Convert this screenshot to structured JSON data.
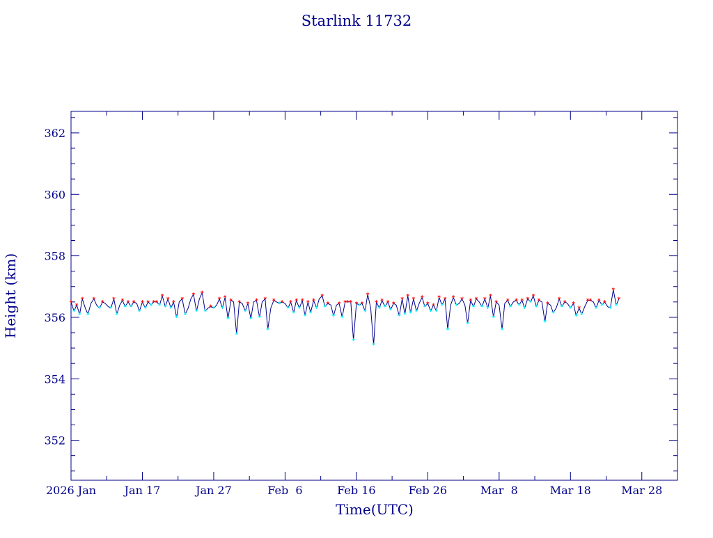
{
  "chart_data": {
    "type": "line",
    "title": "Starlink 11732",
    "xlabel": "Time(UTC)",
    "ylabel": "Height (km)",
    "xlim": [
      "2026-01-07",
      "2026-04-02"
    ],
    "ylim": [
      350.7,
      362.7
    ],
    "y_ticks": [
      352,
      354,
      356,
      358,
      360,
      362
    ],
    "y_minor_step": 0.5,
    "x_ticks": [
      {
        "date": "2026-01-07",
        "label": "2026 Jan"
      },
      {
        "date": "2026-01-17",
        "label": "Jan 17"
      },
      {
        "date": "2026-01-27",
        "label": "Jan 27"
      },
      {
        "date": "2026-02-06",
        "label": "Feb  6"
      },
      {
        "date": "2026-02-16",
        "label": "Feb 16"
      },
      {
        "date": "2026-02-26",
        "label": "Feb 26"
      },
      {
        "date": "2026-03-08",
        "label": "Mar  8"
      },
      {
        "date": "2026-03-18",
        "label": "Mar 18"
      },
      {
        "date": "2026-03-28",
        "label": "Mar 28"
      }
    ],
    "grid": false,
    "legend": "none",
    "series": [
      {
        "line_color": "#00008b",
        "max_marker_color": "#ff0000",
        "min_marker_color": "#00ffff",
        "points": [
          [
            "2026-01-07T00:00",
            356.5
          ],
          [
            "2026-01-07T10:00",
            356.2
          ],
          [
            "2026-01-07T19:00",
            356.4
          ],
          [
            "2026-01-08T05:00",
            356.1
          ],
          [
            "2026-01-08T14:00",
            356.6
          ],
          [
            "2026-01-09T00:00",
            356.3
          ],
          [
            "2026-01-09T09:00",
            356.1
          ],
          [
            "2026-01-09T19:00",
            356.45
          ],
          [
            "2026-01-10T05:00",
            356.6
          ],
          [
            "2026-01-10T14:00",
            356.4
          ],
          [
            "2026-01-11T00:00",
            356.3
          ],
          [
            "2026-01-11T10:00",
            356.5
          ],
          [
            "2026-01-11T19:00",
            356.45
          ],
          [
            "2026-01-12T05:00",
            356.35
          ],
          [
            "2026-01-12T14:00",
            356.3
          ],
          [
            "2026-01-13T00:00",
            356.6
          ],
          [
            "2026-01-13T10:00",
            356.1
          ],
          [
            "2026-01-13T20:00",
            356.4
          ],
          [
            "2026-01-14T05:00",
            356.55
          ],
          [
            "2026-01-14T14:00",
            356.35
          ],
          [
            "2026-01-15T00:00",
            356.5
          ],
          [
            "2026-01-15T10:00",
            356.35
          ],
          [
            "2026-01-15T19:00",
            356.5
          ],
          [
            "2026-01-16T05:00",
            356.45
          ],
          [
            "2026-01-16T14:00",
            356.2
          ],
          [
            "2026-01-17T00:00",
            356.5
          ],
          [
            "2026-01-17T10:00",
            356.3
          ],
          [
            "2026-01-17T19:00",
            356.5
          ],
          [
            "2026-01-18T05:00",
            356.4
          ],
          [
            "2026-01-18T14:00",
            356.5
          ],
          [
            "2026-01-19T00:00",
            356.5
          ],
          [
            "2026-01-19T10:00",
            356.4
          ],
          [
            "2026-01-19T19:00",
            356.7
          ],
          [
            "2026-01-20T05:00",
            356.35
          ],
          [
            "2026-01-20T14:00",
            356.6
          ],
          [
            "2026-01-21T00:00",
            356.3
          ],
          [
            "2026-01-21T09:00",
            356.5
          ],
          [
            "2026-01-21T19:00",
            356.0
          ],
          [
            "2026-01-22T04:00",
            356.5
          ],
          [
            "2026-01-22T14:00",
            356.6
          ],
          [
            "2026-01-23T00:00",
            356.1
          ],
          [
            "2026-01-23T10:00",
            356.3
          ],
          [
            "2026-01-23T19:00",
            356.6
          ],
          [
            "2026-01-24T04:00",
            356.75
          ],
          [
            "2026-01-24T14:00",
            356.2
          ],
          [
            "2026-01-25T00:00",
            356.6
          ],
          [
            "2026-01-25T09:00",
            356.8
          ],
          [
            "2026-01-25T19:00",
            356.2
          ],
          [
            "2026-01-26T05:00",
            356.3
          ],
          [
            "2026-01-26T14:00",
            356.35
          ],
          [
            "2026-01-27T00:00",
            356.3
          ],
          [
            "2026-01-27T10:00",
            356.4
          ],
          [
            "2026-01-27T19:00",
            356.6
          ],
          [
            "2026-01-28T05:00",
            356.3
          ],
          [
            "2026-01-28T14:00",
            356.65
          ],
          [
            "2026-01-29T00:00",
            355.95
          ],
          [
            "2026-01-29T10:00",
            356.55
          ],
          [
            "2026-01-29T19:00",
            356.5
          ],
          [
            "2026-01-30T05:00",
            355.45
          ],
          [
            "2026-01-30T14:00",
            356.5
          ],
          [
            "2026-01-31T00:00",
            356.45
          ],
          [
            "2026-01-31T10:00",
            356.2
          ],
          [
            "2026-01-31T19:00",
            356.45
          ],
          [
            "2026-02-01T05:00",
            355.95
          ],
          [
            "2026-02-01T14:00",
            356.5
          ],
          [
            "2026-02-02T00:00",
            356.55
          ],
          [
            "2026-02-02T10:00",
            356.0
          ],
          [
            "2026-02-02T19:00",
            356.5
          ],
          [
            "2026-02-03T05:00",
            356.6
          ],
          [
            "2026-02-03T14:00",
            355.6
          ],
          [
            "2026-02-04T00:00",
            356.3
          ],
          [
            "2026-02-04T10:00",
            356.55
          ],
          [
            "2026-02-04T19:00",
            356.5
          ],
          [
            "2026-02-05T05:00",
            356.45
          ],
          [
            "2026-02-05T14:00",
            356.5
          ],
          [
            "2026-02-06T00:00",
            356.45
          ],
          [
            "2026-02-06T10:00",
            356.3
          ],
          [
            "2026-02-06T19:00",
            356.5
          ],
          [
            "2026-02-07T05:00",
            356.15
          ],
          [
            "2026-02-07T14:00",
            356.55
          ],
          [
            "2026-02-08T00:00",
            356.3
          ],
          [
            "2026-02-08T10:00",
            356.55
          ],
          [
            "2026-02-08T19:00",
            356.05
          ],
          [
            "2026-02-09T05:00",
            356.5
          ],
          [
            "2026-02-09T14:00",
            356.15
          ],
          [
            "2026-02-10T00:00",
            356.55
          ],
          [
            "2026-02-10T10:00",
            356.3
          ],
          [
            "2026-02-10T19:00",
            356.6
          ],
          [
            "2026-02-11T05:00",
            356.7
          ],
          [
            "2026-02-11T14:00",
            356.35
          ],
          [
            "2026-02-12T00:00",
            356.45
          ],
          [
            "2026-02-12T10:00",
            356.4
          ],
          [
            "2026-02-12T19:00",
            356.05
          ],
          [
            "2026-02-13T05:00",
            356.4
          ],
          [
            "2026-02-13T14:00",
            356.45
          ],
          [
            "2026-02-14T00:00",
            356.0
          ],
          [
            "2026-02-14T10:00",
            356.5
          ],
          [
            "2026-02-14T19:00",
            356.5
          ],
          [
            "2026-02-15T05:00",
            356.5
          ],
          [
            "2026-02-15T14:00",
            355.25
          ],
          [
            "2026-02-16T00:00",
            356.45
          ],
          [
            "2026-02-16T10:00",
            356.4
          ],
          [
            "2026-02-16T19:00",
            356.45
          ],
          [
            "2026-02-17T05:00",
            356.2
          ],
          [
            "2026-02-17T14:00",
            356.75
          ],
          [
            "2026-02-18T00:00",
            356.3
          ],
          [
            "2026-02-18T10:00",
            355.1
          ],
          [
            "2026-02-18T19:00",
            356.5
          ],
          [
            "2026-02-19T05:00",
            356.3
          ],
          [
            "2026-02-19T14:00",
            356.55
          ],
          [
            "2026-02-20T00:00",
            356.35
          ],
          [
            "2026-02-20T10:00",
            356.5
          ],
          [
            "2026-02-20T19:00",
            356.25
          ],
          [
            "2026-02-21T05:00",
            356.45
          ],
          [
            "2026-02-21T14:00",
            356.4
          ],
          [
            "2026-02-22T00:00",
            356.05
          ],
          [
            "2026-02-22T10:00",
            356.6
          ],
          [
            "2026-02-22T19:00",
            356.1
          ],
          [
            "2026-02-23T05:00",
            356.7
          ],
          [
            "2026-02-23T14:00",
            356.15
          ],
          [
            "2026-02-24T00:00",
            356.6
          ],
          [
            "2026-02-24T10:00",
            356.2
          ],
          [
            "2026-02-24T19:00",
            356.45
          ],
          [
            "2026-02-25T05:00",
            356.65
          ],
          [
            "2026-02-25T14:00",
            356.35
          ],
          [
            "2026-02-26T00:00",
            356.45
          ],
          [
            "2026-02-26T10:00",
            356.2
          ],
          [
            "2026-02-26T19:00",
            356.4
          ],
          [
            "2026-02-27T05:00",
            356.2
          ],
          [
            "2026-02-27T14:00",
            356.65
          ],
          [
            "2026-02-28T00:00",
            356.4
          ],
          [
            "2026-02-28T10:00",
            356.6
          ],
          [
            "2026-02-28T19:00",
            355.6
          ],
          [
            "2026-03-01T05:00",
            356.4
          ],
          [
            "2026-03-01T14:00",
            356.65
          ],
          [
            "2026-03-02T00:00",
            356.4
          ],
          [
            "2026-03-02T10:00",
            356.45
          ],
          [
            "2026-03-02T19:00",
            356.6
          ],
          [
            "2026-03-03T05:00",
            356.4
          ],
          [
            "2026-03-03T14:00",
            355.8
          ],
          [
            "2026-03-04T00:00",
            356.55
          ],
          [
            "2026-03-04T10:00",
            356.35
          ],
          [
            "2026-03-04T19:00",
            356.6
          ],
          [
            "2026-03-05T05:00",
            356.5
          ],
          [
            "2026-03-05T14:00",
            356.35
          ],
          [
            "2026-03-06T00:00",
            356.6
          ],
          [
            "2026-03-06T10:00",
            356.3
          ],
          [
            "2026-03-06T19:00",
            356.7
          ],
          [
            "2026-03-07T05:00",
            356.0
          ],
          [
            "2026-03-07T14:00",
            356.5
          ],
          [
            "2026-03-08T00:00",
            356.4
          ],
          [
            "2026-03-08T10:00",
            355.6
          ],
          [
            "2026-03-08T19:00",
            356.45
          ],
          [
            "2026-03-09T05:00",
            356.55
          ],
          [
            "2026-03-09T14:00",
            356.35
          ],
          [
            "2026-03-10T00:00",
            356.5
          ],
          [
            "2026-03-10T10:00",
            356.55
          ],
          [
            "2026-03-10T19:00",
            356.4
          ],
          [
            "2026-03-11T05:00",
            356.55
          ],
          [
            "2026-03-11T14:00",
            356.3
          ],
          [
            "2026-03-12T00:00",
            356.6
          ],
          [
            "2026-03-12T10:00",
            356.5
          ],
          [
            "2026-03-12T19:00",
            356.7
          ],
          [
            "2026-03-13T05:00",
            356.35
          ],
          [
            "2026-03-13T14:00",
            356.55
          ],
          [
            "2026-03-14T00:00",
            356.5
          ],
          [
            "2026-03-14T10:00",
            355.85
          ],
          [
            "2026-03-14T19:00",
            356.45
          ],
          [
            "2026-03-15T05:00",
            356.4
          ],
          [
            "2026-03-15T14:00",
            356.15
          ],
          [
            "2026-03-16T00:00",
            356.3
          ],
          [
            "2026-03-16T10:00",
            356.6
          ],
          [
            "2026-03-16T19:00",
            356.35
          ],
          [
            "2026-03-17T05:00",
            356.5
          ],
          [
            "2026-03-17T14:00",
            356.45
          ],
          [
            "2026-03-18T00:00",
            356.3
          ],
          [
            "2026-03-18T10:00",
            356.45
          ],
          [
            "2026-03-18T19:00",
            356.05
          ],
          [
            "2026-03-19T05:00",
            356.3
          ],
          [
            "2026-03-19T14:00",
            356.1
          ],
          [
            "2026-03-20T00:00",
            356.35
          ],
          [
            "2026-03-20T10:00",
            356.55
          ],
          [
            "2026-03-20T19:00",
            356.55
          ],
          [
            "2026-03-21T05:00",
            356.5
          ],
          [
            "2026-03-21T14:00",
            356.3
          ],
          [
            "2026-03-22T00:00",
            356.55
          ],
          [
            "2026-03-22T10:00",
            356.4
          ],
          [
            "2026-03-22T19:00",
            356.5
          ],
          [
            "2026-03-23T05:00",
            356.35
          ],
          [
            "2026-03-23T14:00",
            356.3
          ],
          [
            "2026-03-24T00:00",
            356.9
          ],
          [
            "2026-03-24T10:00",
            356.4
          ],
          [
            "2026-03-24T19:00",
            356.6
          ]
        ]
      }
    ]
  }
}
